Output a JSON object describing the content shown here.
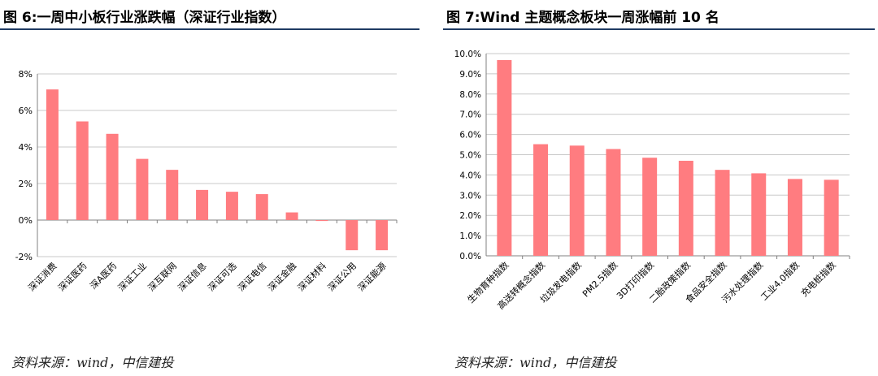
{
  "charts": [
    {
      "title": "图 6:一周中小板行业涨跌幅（深证行业指数）",
      "source": "资料来源：wind，中信建投",
      "chart_data": {
        "type": "bar",
        "categories": [
          "深证消费",
          "深证医药",
          "深A医药",
          "深证工业",
          "深互联网",
          "深证信息",
          "深证可选",
          "深证电信",
          "深证金融",
          "深证材料",
          "深证公用",
          "深证能源"
        ],
        "values": [
          7.15,
          5.4,
          4.72,
          3.35,
          2.75,
          1.65,
          1.55,
          1.42,
          0.42,
          -0.05,
          -1.65,
          -1.65
        ],
        "ylim": [
          -2,
          8
        ],
        "yticks": [
          -2,
          0,
          2,
          4,
          6,
          8
        ],
        "ytick_labels": [
          "-2%",
          "0%",
          "2%",
          "4%",
          "6%",
          "8%"
        ],
        "grid": true,
        "bar_color": "#ff7c80"
      }
    },
    {
      "title": "图 7:Wind 主题概念板块一周涨幅前 10 名",
      "source": "资料来源：wind，中信建投",
      "chart_data": {
        "type": "bar",
        "categories": [
          "生物育种指数",
          "高送转概念指数",
          "垃圾发电指数",
          "PM2.5指数",
          "3D打印指数",
          "二胎政策指数",
          "食品安全指数",
          "污水处理指数",
          "工业4.0指数",
          "充电桩指数"
        ],
        "values": [
          9.68,
          5.52,
          5.45,
          5.28,
          4.85,
          4.7,
          4.25,
          4.08,
          3.8,
          3.76
        ],
        "ylim": [
          0,
          10
        ],
        "yticks": [
          0,
          1,
          2,
          3,
          4,
          5,
          6,
          7,
          8,
          9,
          10
        ],
        "ytick_labels": [
          "0.0%",
          "1.0%",
          "2.0%",
          "3.0%",
          "4.0%",
          "5.0%",
          "6.0%",
          "7.0%",
          "8.0%",
          "9.0%",
          "10.0%"
        ],
        "grid": true,
        "bar_color": "#ff7c80"
      }
    }
  ]
}
